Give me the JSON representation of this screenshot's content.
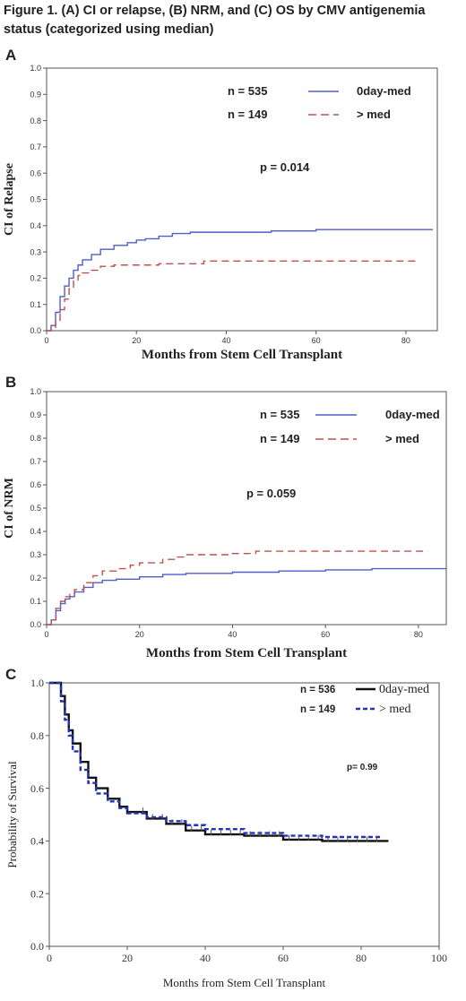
{
  "figure": {
    "title": "Figure 1. (A) CI or relapse, (B) NRM, and (C) OS by CMV antigenemia status (categorized using median)"
  },
  "panels": [
    {
      "letter": "A",
      "p_text": "p = 0.014"
    },
    {
      "letter": "B",
      "p_text": "p = 0.059"
    },
    {
      "letter": "C",
      "p_text": "p= 0.99"
    }
  ],
  "chart_data": [
    {
      "type": "line",
      "panel": "A",
      "xlabel": "Months from Stem Cell Transplant",
      "ylabel": "CI of Relapse",
      "xlim": [
        0,
        87
      ],
      "ylim": [
        0,
        1.0
      ],
      "xticks": [
        0,
        20,
        40,
        60,
        80
      ],
      "yticks": [
        0.0,
        0.1,
        0.2,
        0.3,
        0.4,
        0.5,
        0.6,
        0.7,
        0.8,
        0.9,
        1.0
      ],
      "grid": false,
      "legend": [
        {
          "n_label": "n = 535",
          "name": "0day-med",
          "color": "#4f5fc8",
          "dash": "solid"
        },
        {
          "n_label": "n = 149",
          "name": "> med",
          "color": "#c0504d",
          "dash": "dashed"
        }
      ],
      "annotation": "p = 0.014",
      "series": [
        {
          "name": "0day-med",
          "color": "#4f5fc8",
          "dash": "solid",
          "x": [
            0,
            1,
            2,
            3,
            4,
            5,
            6,
            7,
            8,
            10,
            12,
            15,
            18,
            20,
            22,
            25,
            28,
            32,
            40,
            50,
            60,
            70,
            80,
            86
          ],
          "y": [
            0,
            0.02,
            0.07,
            0.13,
            0.17,
            0.2,
            0.23,
            0.25,
            0.27,
            0.29,
            0.31,
            0.325,
            0.335,
            0.345,
            0.35,
            0.36,
            0.37,
            0.375,
            0.375,
            0.38,
            0.385,
            0.385,
            0.385,
            0.385
          ]
        },
        {
          "name": "> med",
          "color": "#c0504d",
          "dash": "dashed",
          "x": [
            0,
            1,
            2,
            3,
            4,
            5,
            6,
            7,
            8,
            10,
            12,
            15,
            20,
            25,
            35,
            50,
            70,
            83
          ],
          "y": [
            0,
            0.01,
            0.04,
            0.08,
            0.12,
            0.16,
            0.19,
            0.21,
            0.22,
            0.23,
            0.245,
            0.25,
            0.25,
            0.255,
            0.265,
            0.265,
            0.265,
            0.265
          ]
        }
      ]
    },
    {
      "type": "line",
      "panel": "B",
      "xlabel": "Months from Stem Cell Transplant",
      "ylabel": "CI of NRM",
      "xlim": [
        0,
        86
      ],
      "ylim": [
        0,
        1.0
      ],
      "xticks": [
        0,
        20,
        40,
        60,
        80
      ],
      "yticks": [
        0.0,
        0.1,
        0.2,
        0.3,
        0.4,
        0.5,
        0.6,
        0.7,
        0.8,
        0.9,
        1.0
      ],
      "grid": false,
      "legend": [
        {
          "n_label": "n = 535",
          "name": "0day-med",
          "color": "#4f5fc8",
          "dash": "solid"
        },
        {
          "n_label": "n = 149",
          "name": "> med",
          "color": "#c0504d",
          "dash": "dashed"
        }
      ],
      "annotation": "p = 0.059",
      "series": [
        {
          "name": "0day-med",
          "color": "#4f5fc8",
          "dash": "solid",
          "x": [
            0,
            1,
            2,
            3,
            4,
            5,
            6,
            8,
            10,
            12,
            15,
            20,
            25,
            30,
            40,
            50,
            60,
            70,
            80,
            86
          ],
          "y": [
            0,
            0.02,
            0.06,
            0.09,
            0.11,
            0.12,
            0.14,
            0.16,
            0.18,
            0.19,
            0.195,
            0.205,
            0.215,
            0.22,
            0.225,
            0.23,
            0.235,
            0.24,
            0.24,
            0.24
          ]
        },
        {
          "name": "> med",
          "color": "#c0504d",
          "dash": "dashed",
          "x": [
            0,
            1,
            2,
            3,
            4,
            5,
            6,
            8,
            10,
            12,
            15,
            18,
            20,
            25,
            28,
            30,
            40,
            45,
            60,
            70,
            82
          ],
          "y": [
            0,
            0.02,
            0.07,
            0.1,
            0.12,
            0.13,
            0.15,
            0.18,
            0.21,
            0.23,
            0.24,
            0.255,
            0.265,
            0.28,
            0.29,
            0.3,
            0.305,
            0.315,
            0.315,
            0.315,
            0.315
          ]
        }
      ]
    },
    {
      "type": "line",
      "panel": "C",
      "xlabel": "Months from Stem Cell Transplant",
      "ylabel": "Probability of Survival",
      "xlim": [
        0,
        100
      ],
      "ylim": [
        0,
        1.0
      ],
      "xticks": [
        0,
        20,
        40,
        60,
        80,
        100
      ],
      "yticks": [
        0.0,
        0.2,
        0.4,
        0.6,
        0.8,
        1.0
      ],
      "grid": false,
      "legend": [
        {
          "n_label": "n = 536",
          "name": "0day-med",
          "color": "#111111",
          "dash": "solid"
        },
        {
          "n_label": "n = 149",
          "name": "> med",
          "color": "#2233bb",
          "dash": "dashed"
        }
      ],
      "annotation": "p= 0.99",
      "series": [
        {
          "name": "0day-med",
          "color": "#111111",
          "dash": "solid",
          "x": [
            0,
            2,
            3,
            4,
            5,
            6,
            8,
            10,
            12,
            15,
            18,
            20,
            25,
            30,
            35,
            40,
            50,
            60,
            70,
            80,
            87
          ],
          "y": [
            1.0,
            1.0,
            0.95,
            0.88,
            0.82,
            0.77,
            0.7,
            0.64,
            0.6,
            0.56,
            0.53,
            0.51,
            0.485,
            0.465,
            0.44,
            0.425,
            0.42,
            0.405,
            0.4,
            0.4,
            0.4
          ]
        },
        {
          "name": "> med",
          "color": "#2233bb",
          "dash": "dashed",
          "x": [
            0,
            2,
            3,
            4,
            5,
            6,
            8,
            10,
            12,
            15,
            18,
            20,
            25,
            30,
            35,
            40,
            50,
            60,
            70,
            80,
            85
          ],
          "y": [
            1.0,
            1.0,
            0.93,
            0.86,
            0.8,
            0.74,
            0.67,
            0.62,
            0.58,
            0.55,
            0.525,
            0.505,
            0.49,
            0.475,
            0.46,
            0.445,
            0.43,
            0.42,
            0.415,
            0.415,
            0.415
          ]
        }
      ]
    }
  ]
}
